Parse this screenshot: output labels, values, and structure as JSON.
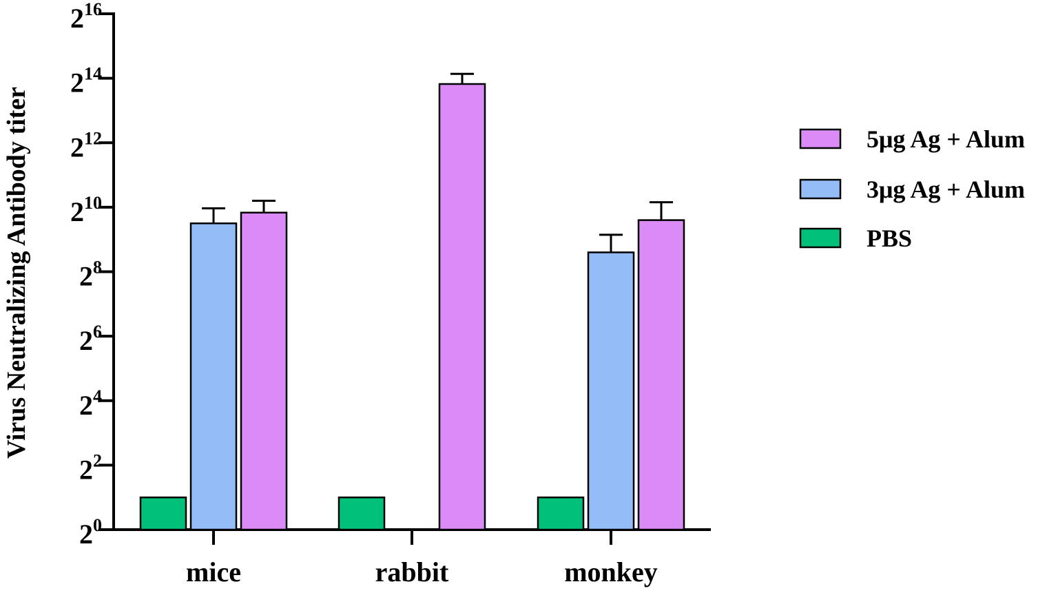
{
  "chart_data": {
    "type": "bar",
    "title": "",
    "ylabel": "Virus Neutralizing Antibody titer",
    "xlabel": "",
    "y_scale": "log2",
    "ylim_exponent": [
      0,
      16
    ],
    "y_ticks": [
      {
        "base": "2",
        "exp": "0"
      },
      {
        "base": "2",
        "exp": "2"
      },
      {
        "base": "2",
        "exp": "4"
      },
      {
        "base": "2",
        "exp": "6"
      },
      {
        "base": "2",
        "exp": "8"
      },
      {
        "base": "2",
        "exp": "10"
      },
      {
        "base": "2",
        "exp": "12"
      },
      {
        "base": "2",
        "exp": "14"
      },
      {
        "base": "2",
        "exp": "16"
      }
    ],
    "categories": [
      "mice",
      "rabbit",
      "monkey"
    ],
    "series": [
      {
        "name": "PBS",
        "color": "#00c07a",
        "values": [
          2,
          2,
          2
        ],
        "errors": [
          null,
          null,
          null
        ]
      },
      {
        "name": "3μg Ag + Alum",
        "color": "#94bdf8",
        "values": [
          724,
          null,
          388
        ],
        "errors": [
          1000,
          null,
          566
        ]
      },
      {
        "name": "5μg Ag + Alum",
        "color": "#da8bf5",
        "values": [
          912,
          14480,
          776
        ],
        "errors": [
          1176,
          18000,
          1140
        ]
      }
    ],
    "legend_order": [
      "5μg Ag + Alum",
      "3μg Ag + Alum",
      "PBS"
    ],
    "legend_position": "right",
    "grid": false
  }
}
